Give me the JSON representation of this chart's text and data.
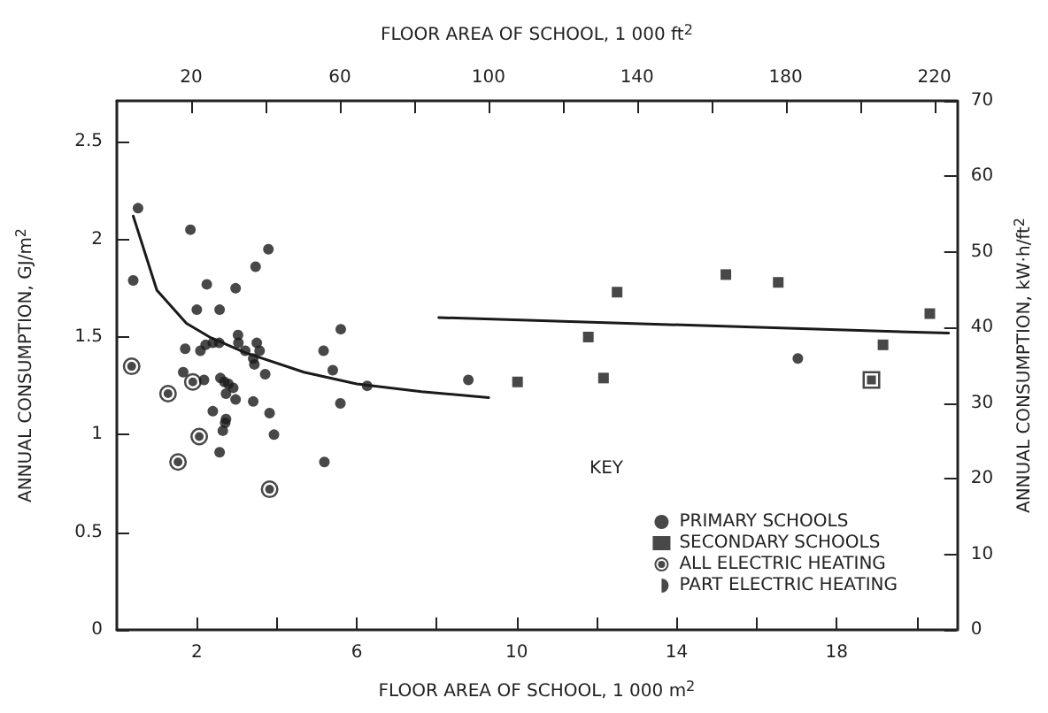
{
  "chart_data": {
    "type": "scatter",
    "xlabel": "FLOOR AREA OF SCHOOL, 1 000 m$^{2}$",
    "x2label": "FLOOR AREA OF SCHOOL, 1 000 ft$^{2}$",
    "ylabel": "ANNUAL CONSUMPTION, GJ/m$^{2}$",
    "y2label": "ANNUAL CONSUMPTION, kW·h/ft$^{2}$",
    "legend_title": "KEY",
    "xlim": [
      0,
      21
    ],
    "xticks": [
      {
        "value": 2,
        "label": "2"
      },
      {
        "value": 4,
        "label": null
      },
      {
        "value": 6,
        "label": "6"
      },
      {
        "value": 8,
        "label": null
      },
      {
        "value": 10,
        "label": "10"
      },
      {
        "value": 12,
        "label": null
      },
      {
        "value": 14,
        "label": "14"
      },
      {
        "value": 16,
        "label": null
      },
      {
        "value": 18,
        "label": "18"
      },
      {
        "value": 20,
        "label": null
      }
    ],
    "x2lim": [
      0,
      226
    ],
    "x2ticks": [
      20,
      {
        "value": 40,
        "label": null
      },
      60,
      {
        "value": 80,
        "label": null
      },
      100,
      {
        "value": 120,
        "label": null
      },
      140,
      {
        "value": 160,
        "label": null
      },
      180,
      {
        "value": 200,
        "label": null
      },
      220
    ],
    "ylim": [
      0,
      2.71
    ],
    "yticks": [
      0,
      0.5,
      1.0,
      1.5,
      2.0,
      2.5
    ],
    "y2lim": [
      0,
      70
    ],
    "y2ticks": [
      0,
      10,
      20,
      30,
      40,
      50,
      60,
      70
    ],
    "grid": false,
    "legend": "bottom right",
    "series": [
      {
        "name": "PRIMARY SCHOOLS",
        "marker": "circle",
        "color": "#1a1a1a",
        "x": [
          0.53,
          0.41,
          1.84,
          2.25,
          2.0,
          2.57,
          2.97,
          3.47,
          3.79,
          1.71,
          2.22,
          2.4,
          2.56,
          2.09,
          3.03,
          3.04,
          3.21,
          3.5,
          3.57,
          3.41,
          3.44,
          3.71,
          1.66,
          2.18,
          2.59,
          2.69,
          2.79,
          2.91,
          2.73,
          2.97,
          3.41,
          2.4,
          2.73,
          2.71,
          2.65,
          3.82,
          3.93,
          2.57,
          5.17,
          5.4,
          5.6,
          5.59,
          5.19,
          6.26,
          8.79,
          17.03
        ],
        "values": [
          2.16,
          1.79,
          2.05,
          1.77,
          1.64,
          1.64,
          1.75,
          1.86,
          1.95,
          1.44,
          1.46,
          1.47,
          1.47,
          1.43,
          1.51,
          1.47,
          1.43,
          1.47,
          1.43,
          1.39,
          1.36,
          1.31,
          1.32,
          1.28,
          1.29,
          1.27,
          1.26,
          1.24,
          1.21,
          1.18,
          1.17,
          1.12,
          1.08,
          1.06,
          1.02,
          1.11,
          1.0,
          0.91,
          1.43,
          1.33,
          1.54,
          1.16,
          0.86,
          1.25,
          1.28,
          1.39
        ]
      },
      {
        "name": "SECONDARY SCHOOLS",
        "marker": "square",
        "color": "#1a1a1a",
        "x": [
          10.02,
          11.79,
          12.17,
          12.51,
          15.23,
          16.54,
          19.16,
          20.33
        ],
        "values": [
          1.27,
          1.5,
          1.29,
          1.73,
          1.82,
          1.78,
          1.46,
          1.62
        ]
      },
      {
        "name": "ALL ELECTRIC HEATING",
        "color": "#1a1a1a",
        "x": [
          0.37,
          1.9,
          1.28,
          2.06,
          1.53,
          3.82
        ],
        "values": [
          1.35,
          1.27,
          1.21,
          0.99,
          0.86,
          0.72
        ]
      },
      {
        "color": "#1a1a1a",
        "x": [
          18.87
        ],
        "values": [
          1.28
        ]
      },
      {
        "name": "PART ELECTRIC HEATING",
        "color": "#1a1a1a"
      },
      {
        "type": "line",
        "marker": "none",
        "color": "#1a1a1a",
        "x": [
          0.41,
          1.0,
          1.74,
          2.32,
          3.21,
          4.68,
          6.0,
          7.62,
          9.3
        ],
        "values": [
          2.12,
          1.74,
          1.57,
          1.5,
          1.42,
          1.32,
          1.26,
          1.22,
          1.19
        ]
      },
      {
        "type": "line",
        "marker": "none",
        "color": "#1a1a1a",
        "x": [
          8.05,
          20.8
        ],
        "values": [
          1.6,
          1.52
        ]
      }
    ]
  }
}
